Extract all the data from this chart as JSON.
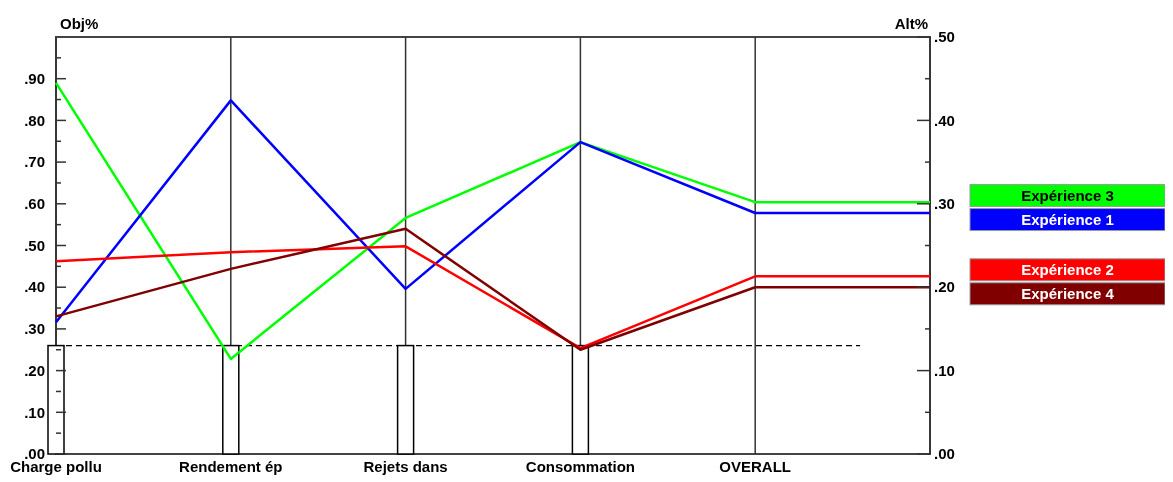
{
  "chart_data": {
    "type": "line",
    "ylabel": "Obj%",
    "y2label": "Alt%",
    "categories": [
      "Charge pollu",
      "Rendement ép",
      "Rejets dans",
      "Consommation",
      "OVERALL",
      null
    ],
    "ylim": [
      0,
      1
    ],
    "yticks": [
      {
        "value": 0,
        "label": ".00"
      },
      {
        "value": 0.05,
        "label": null
      },
      {
        "value": 0.1,
        "label": ".10"
      },
      {
        "value": 0.15,
        "label": null
      },
      {
        "value": 0.2,
        "label": ".20"
      },
      {
        "value": 0.25,
        "label": null
      },
      {
        "value": 0.3,
        "label": ".30"
      },
      {
        "value": 0.35,
        "label": null
      },
      {
        "value": 0.4,
        "label": ".40"
      },
      {
        "value": 0.45,
        "label": null
      },
      {
        "value": 0.5,
        "label": ".50"
      },
      {
        "value": 0.55,
        "label": null
      },
      {
        "value": 0.6,
        "label": ".60"
      },
      {
        "value": 0.65,
        "label": null
      },
      {
        "value": 0.7,
        "label": ".70"
      },
      {
        "value": 0.75,
        "label": null
      },
      {
        "value": 0.8,
        "label": ".80"
      },
      {
        "value": 0.85,
        "label": null
      },
      {
        "value": 0.9,
        "label": ".90"
      },
      {
        "value": 0.95,
        "label": null
      }
    ],
    "y2lim": [
      0,
      0.5
    ],
    "y2ticks": [
      {
        "value": 0,
        "label": ".00"
      },
      {
        "value": 0.05,
        "label": null
      },
      {
        "value": 0.1,
        "label": ".10"
      },
      {
        "value": 0.15,
        "label": null
      },
      {
        "value": 0.2,
        "label": ".20"
      },
      {
        "value": 0.25,
        "label": null
      },
      {
        "value": 0.3,
        "label": ".30"
      },
      {
        "value": 0.35,
        "label": null
      },
      {
        "value": 0.4,
        "label": ".40"
      },
      {
        "value": 0.45,
        "label": null
      },
      {
        "value": 0.5,
        "label": ".50"
      }
    ],
    "grid": "x",
    "legend": "right",
    "ref_lines": [
      {
        "axis": "y",
        "value": 0.26,
        "line_style": "dashed",
        "color": "#000000"
      }
    ],
    "series": [
      {
        "type": "bar",
        "color": "#ffffff",
        "values": [
          0.26,
          0.26,
          0.26,
          0.26,
          null,
          null
        ]
      },
      {
        "name": "Expérience 3",
        "color": "#00ff00",
        "axis": "y2",
        "values": [
          0.445,
          0.114,
          0.283,
          0.374,
          0.302,
          0.302
        ]
      },
      {
        "name": "Expérience 1",
        "color": "#0000ff",
        "axis": "y2",
        "values": [
          0.158,
          0.424,
          0.198,
          0.374,
          0.289,
          0.289
        ]
      },
      {
        "name": "Expérience 2",
        "color": "#ff0000",
        "axis": "y2",
        "values": [
          0.231,
          0.242,
          0.249,
          0.127,
          0.213,
          0.213
        ]
      },
      {
        "name": "Expérience 4",
        "color": "#800000",
        "axis": "y2",
        "values": [
          0.165,
          0.222,
          0.27,
          0.125,
          0.2,
          0.2
        ]
      }
    ]
  }
}
